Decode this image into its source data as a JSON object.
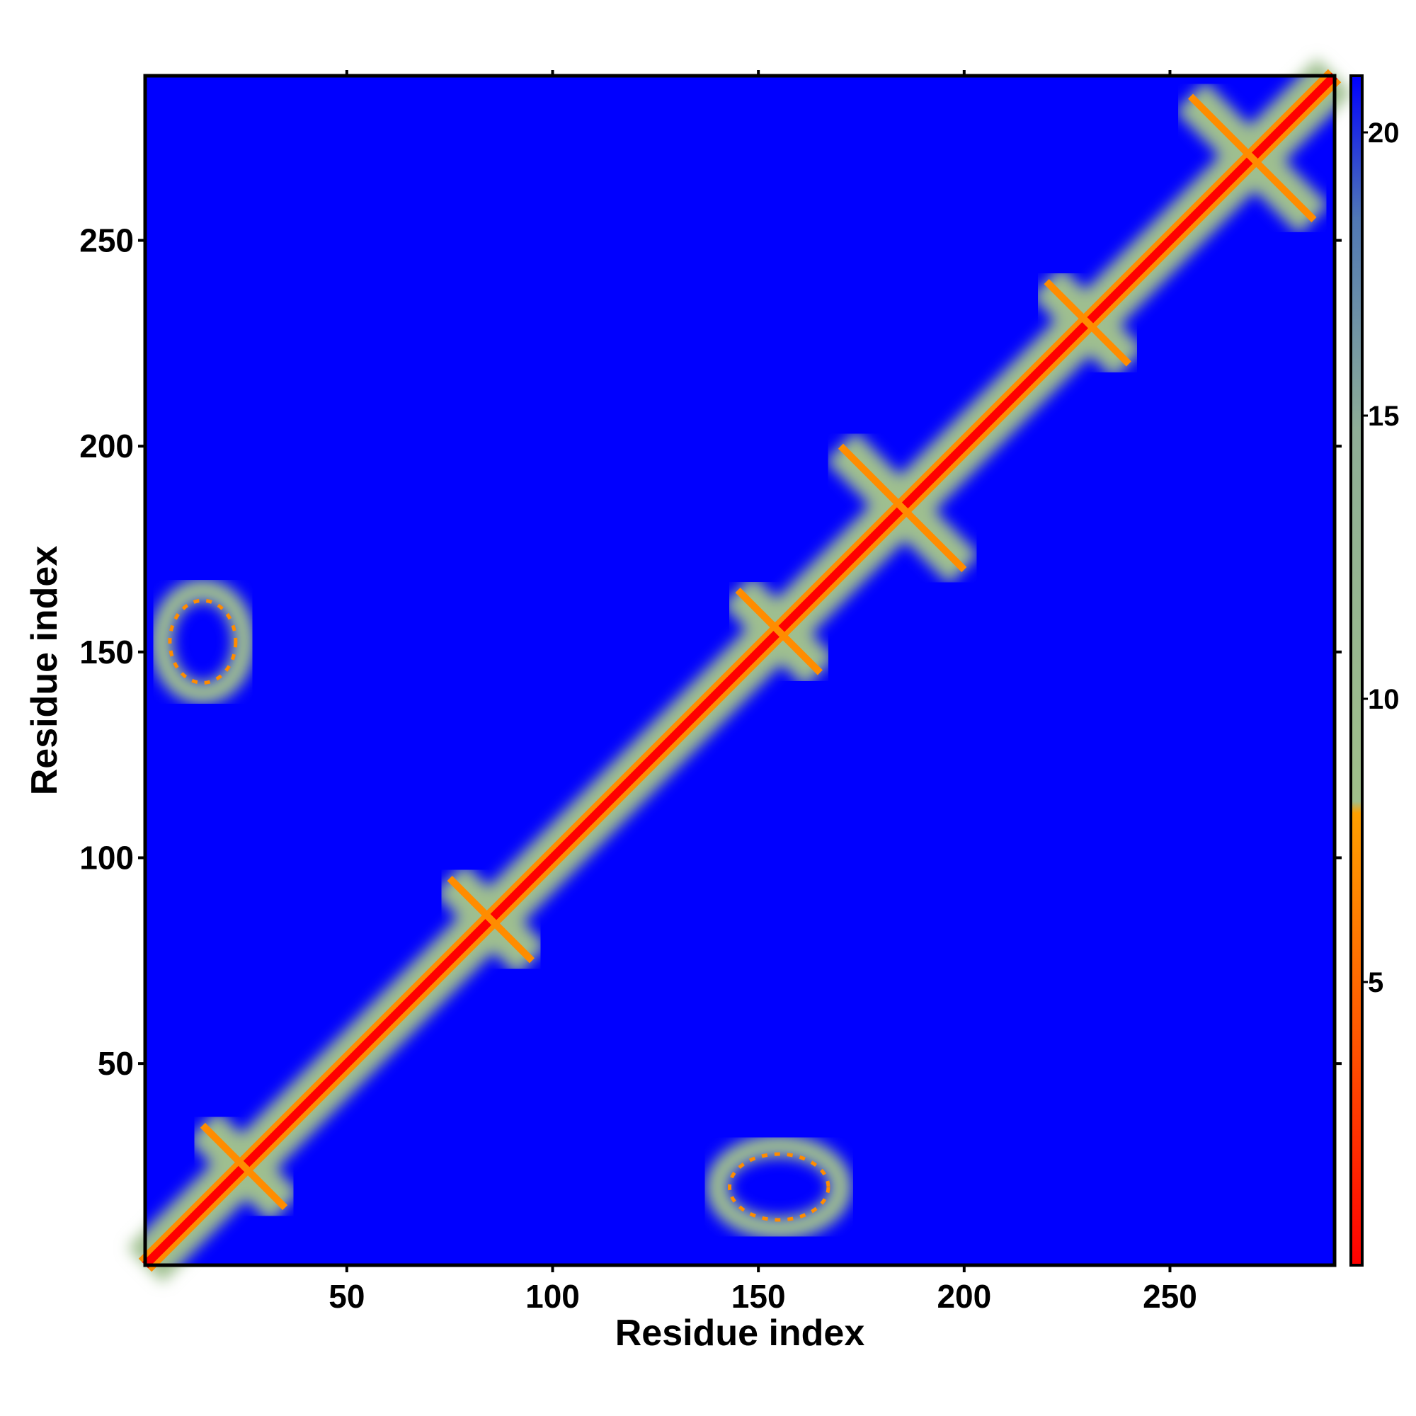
{
  "chart_data": {
    "type": "heatmap",
    "title": "",
    "xlabel": "Residue index",
    "ylabel": "Residue index",
    "xlim": [
      1,
      290
    ],
    "ylim": [
      1,
      290
    ],
    "xticks": [
      50,
      100,
      150,
      200,
      250
    ],
    "yticks": [
      50,
      100,
      150,
      200,
      250
    ],
    "colorbar": {
      "ticks": [
        5,
        10,
        15,
        20
      ],
      "range": [
        0,
        21
      ],
      "colors": [
        "#ff0000",
        "#ff8c00",
        "#9fbf8f",
        "#0000ff"
      ]
    },
    "matrix_description": "Symmetric residue-residue distance map; strong contacts along diagonal (red), off-diagonal beta-sheet and helix contact patterns (orange/green), background far distances (blue).",
    "contact_features": [
      {
        "x": [
          1,
          290
        ],
        "y": [
          1,
          290
        ],
        "kind": "diagonal"
      },
      {
        "x": [
          15,
          35
        ],
        "y": [
          15,
          35
        ],
        "kind": "cross"
      },
      {
        "x": [
          75,
          95
        ],
        "y": [
          75,
          95
        ],
        "kind": "cross"
      },
      {
        "x": [
          145,
          165
        ],
        "y": [
          145,
          165
        ],
        "kind": "cross"
      },
      {
        "x": [
          170,
          200
        ],
        "y": [
          170,
          200
        ],
        "kind": "cross"
      },
      {
        "x": [
          220,
          240
        ],
        "y": [
          220,
          240
        ],
        "kind": "cross"
      },
      {
        "x": [
          255,
          285
        ],
        "y": [
          255,
          285
        ],
        "kind": "cross"
      },
      {
        "x": [
          140,
          170
        ],
        "y": [
          10,
          30
        ],
        "kind": "ring"
      },
      {
        "x": [
          5,
          25
        ],
        "y": [
          140,
          165
        ],
        "kind": "ring"
      }
    ]
  }
}
